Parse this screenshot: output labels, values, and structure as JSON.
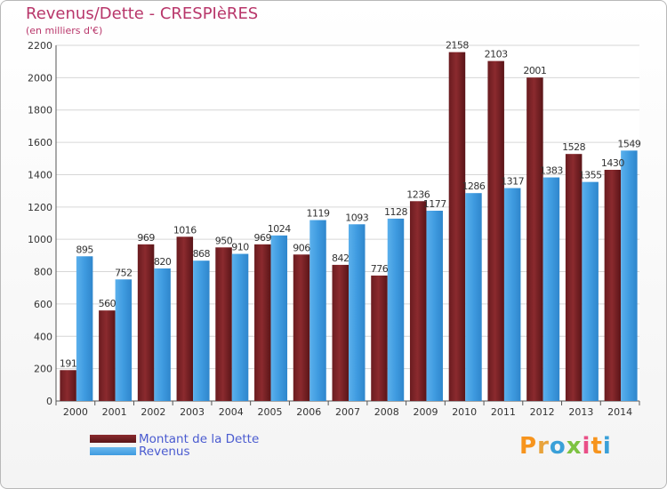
{
  "header": {
    "title": "Revenus/Dette - CRESPIèRES",
    "subtitle": "(en milliers d'€)"
  },
  "legend": {
    "debt_label": "Montant de la Dette",
    "revenue_label": "Revenus"
  },
  "logo": {
    "letters": [
      "P",
      "r",
      "o",
      "x",
      "i",
      "t",
      "i"
    ],
    "colors": [
      "#f7941d",
      "#e8a33c",
      "#3aa0d8",
      "#7dc242",
      "#e94f87",
      "#f7941d",
      "#3aa0d8"
    ]
  },
  "colors": {
    "debt": "#8b2a2e",
    "revenue": "#3f9be0"
  },
  "chart_data": {
    "type": "bar",
    "title": "Revenus/Dette - CRESPIèRES",
    "subtitle": "(en milliers d'€)",
    "categories": [
      "2000",
      "2001",
      "2002",
      "2003",
      "2004",
      "2005",
      "2006",
      "2007",
      "2008",
      "2009",
      "2010",
      "2011",
      "2012",
      "2013",
      "2014"
    ],
    "series": [
      {
        "name": "Montant de la Dette",
        "values": [
          191,
          560,
          969,
          1016,
          950,
          969,
          906,
          842,
          776,
          1236,
          2158,
          2103,
          2001,
          1528,
          1430
        ]
      },
      {
        "name": "Revenus",
        "values": [
          895,
          752,
          820,
          868,
          910,
          1024,
          1119,
          1093,
          1128,
          1177,
          1286,
          1317,
          1383,
          1355,
          1549
        ]
      }
    ],
    "value_labels": {
      "debt": [
        "191",
        "560",
        "969",
        "1016",
        "950",
        "969",
        "906",
        "842",
        "776",
        "1236",
        "2158",
        "2103",
        "2001",
        "1528",
        "1430"
      ],
      "revenue": [
        "895",
        "752",
        "820",
        "868",
        "910",
        "1024",
        "1119",
        "1093",
        "1128",
        "1177",
        "1286",
        "1317",
        "1383",
        "1355",
        "1549"
      ]
    },
    "yticks": [
      "0",
      "200",
      "400",
      "600",
      "800",
      "1000",
      "1200",
      "1400",
      "1600",
      "1800",
      "2000",
      "2200"
    ],
    "ylim": [
      0,
      2200
    ],
    "grid": true,
    "legend_position": "bottom-left"
  }
}
